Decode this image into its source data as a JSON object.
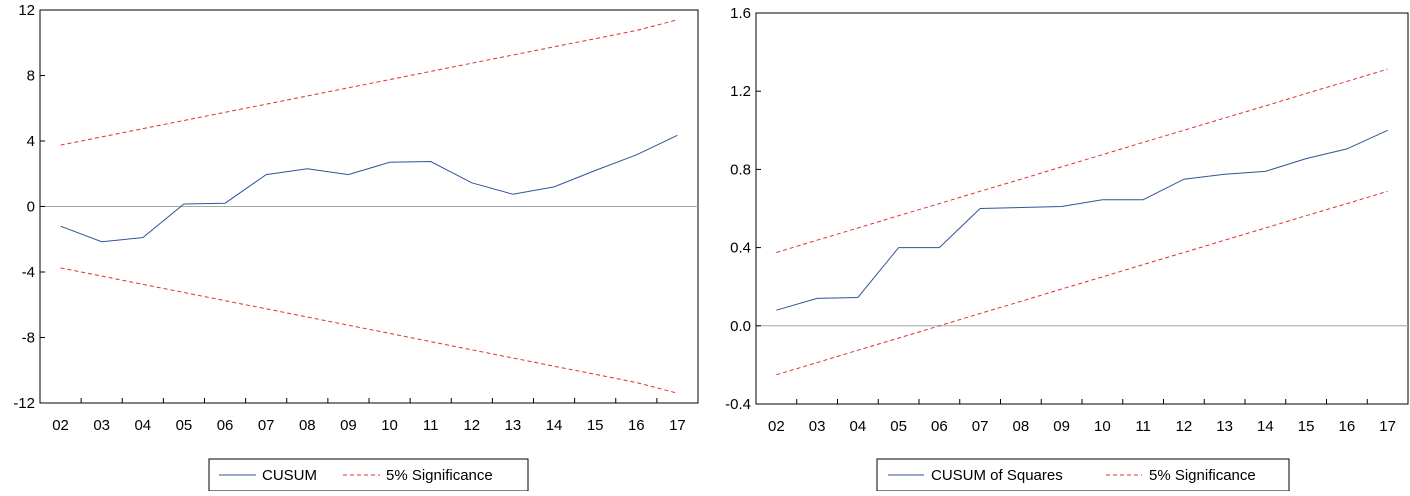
{
  "chart_data": [
    {
      "type": "line",
      "categories": [
        "02",
        "03",
        "04",
        "05",
        "06",
        "07",
        "08",
        "09",
        "10",
        "11",
        "12",
        "13",
        "14",
        "15",
        "16",
        "17"
      ],
      "ylim": [
        -12,
        12
      ],
      "yticks": [
        "12",
        "8",
        "4",
        "0",
        "-4",
        "-8",
        "-12"
      ],
      "ytick_values": [
        12,
        8,
        4,
        0,
        -4,
        -8,
        -12
      ],
      "zero_line": true,
      "legend_position": "bottom-center",
      "series": [
        {
          "name": "CUSUM",
          "style": "solid",
          "color": "#2f5597",
          "values": [
            -1.2,
            -2.15,
            -1.9,
            0.15,
            0.2,
            1.95,
            2.3,
            1.95,
            2.7,
            2.75,
            1.45,
            0.75,
            1.2,
            2.2,
            3.15,
            4.35
          ]
        },
        {
          "name": "5% Significance",
          "style": "dashed",
          "color": "#e03030",
          "values": [
            3.75,
            4.25,
            4.75,
            5.25,
            5.75,
            6.25,
            6.75,
            7.25,
            7.75,
            8.25,
            8.75,
            9.25,
            9.75,
            10.25,
            10.75,
            11.4
          ]
        },
        {
          "name": "",
          "style": "dashed",
          "color": "#e03030",
          "values": [
            -3.75,
            -4.25,
            -4.75,
            -5.25,
            -5.75,
            -6.25,
            -6.75,
            -7.25,
            -7.75,
            -8.25,
            -8.75,
            -9.25,
            -9.75,
            -10.25,
            -10.75,
            -11.4
          ]
        }
      ],
      "legend": [
        "CUSUM",
        "5% Significance"
      ]
    },
    {
      "type": "line",
      "categories": [
        "02",
        "03",
        "04",
        "05",
        "06",
        "07",
        "08",
        "09",
        "10",
        "11",
        "12",
        "13",
        "14",
        "15",
        "16",
        "17"
      ],
      "ylim": [
        -0.4,
        1.6
      ],
      "yticks": [
        "1.6",
        "1.2",
        "0.8",
        "0.4",
        "0.0",
        "-0.4"
      ],
      "ytick_values": [
        1.6,
        1.2,
        0.8,
        0.4,
        0.0,
        -0.4
      ],
      "zero_line": true,
      "legend_position": "bottom-center",
      "series": [
        {
          "name": "CUSUM of Squares",
          "style": "solid",
          "color": "#2f5597",
          "values": [
            0.08,
            0.14,
            0.145,
            0.4,
            0.4,
            0.6,
            0.605,
            0.61,
            0.645,
            0.645,
            0.75,
            0.775,
            0.79,
            0.855,
            0.905,
            1.0
          ]
        },
        {
          "name": "5% Significance",
          "style": "dashed",
          "color": "#e03030",
          "values": [
            0.375,
            0.438,
            0.5,
            0.563,
            0.625,
            0.688,
            0.75,
            0.813,
            0.875,
            0.938,
            1.0,
            1.063,
            1.125,
            1.188,
            1.25,
            1.313
          ]
        },
        {
          "name": "",
          "style": "dashed",
          "color": "#e03030",
          "values": [
            -0.25,
            -0.188,
            -0.125,
            -0.063,
            0.0,
            0.063,
            0.125,
            0.188,
            0.25,
            0.313,
            0.375,
            0.438,
            0.5,
            0.563,
            0.625,
            0.688
          ]
        }
      ],
      "legend": [
        "CUSUM of Squares",
        "5% Significance"
      ]
    }
  ]
}
